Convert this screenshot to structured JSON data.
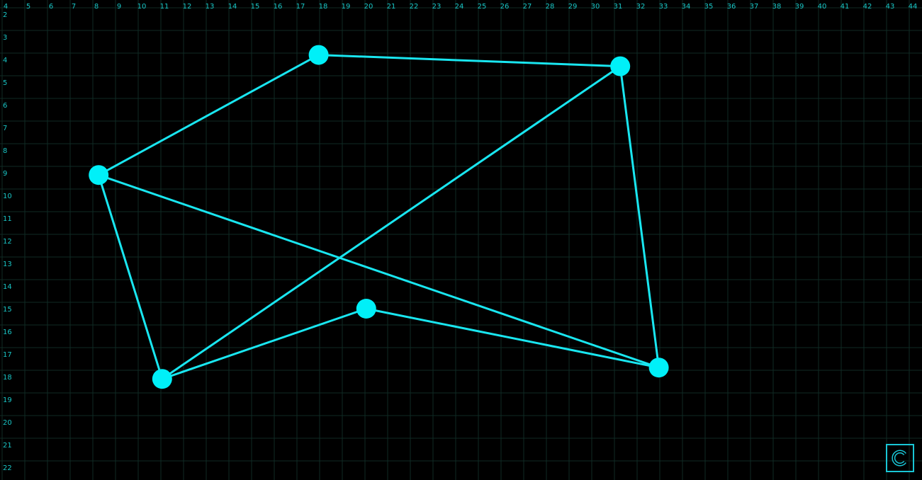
{
  "grid": {
    "x_range": [
      4,
      44
    ],
    "y_range": [
      2,
      22
    ],
    "x_ticks": [
      4,
      5,
      6,
      7,
      8,
      9,
      10,
      11,
      12,
      13,
      14,
      15,
      16,
      17,
      18,
      19,
      20,
      21,
      22,
      23,
      24,
      25,
      26,
      27,
      28,
      29,
      30,
      31,
      32,
      33,
      34,
      35,
      36,
      37,
      38,
      39,
      40,
      41,
      42,
      43,
      44
    ],
    "y_ticks": [
      2,
      3,
      4,
      5,
      6,
      7,
      8,
      9,
      10,
      11,
      12,
      13,
      14,
      15,
      16,
      17,
      18,
      19,
      20,
      21,
      22
    ]
  },
  "nodes": [
    {
      "id": "A",
      "x": 17.8,
      "y": 3.8
    },
    {
      "id": "B",
      "x": 31.1,
      "y": 4.3
    },
    {
      "id": "C",
      "x": 8.1,
      "y": 9.1
    },
    {
      "id": "D",
      "x": 19.9,
      "y": 15.0
    },
    {
      "id": "E",
      "x": 32.8,
      "y": 17.6
    },
    {
      "id": "F",
      "x": 10.9,
      "y": 18.1
    }
  ],
  "edges": [
    [
      "A",
      "B"
    ],
    [
      "A",
      "C"
    ],
    [
      "B",
      "E"
    ],
    [
      "B",
      "F"
    ],
    [
      "C",
      "E"
    ],
    [
      "C",
      "F"
    ],
    [
      "F",
      "D"
    ],
    [
      "D",
      "E"
    ]
  ],
  "colors": {
    "background": "#000000",
    "grid": "#0f2a24",
    "tick_label": "#19c6c6",
    "edge": "#19e6f0",
    "node": "#00f0f8",
    "reset_border": "#19c6d6"
  },
  "reset_button": {
    "icon": "reset-c-icon"
  }
}
